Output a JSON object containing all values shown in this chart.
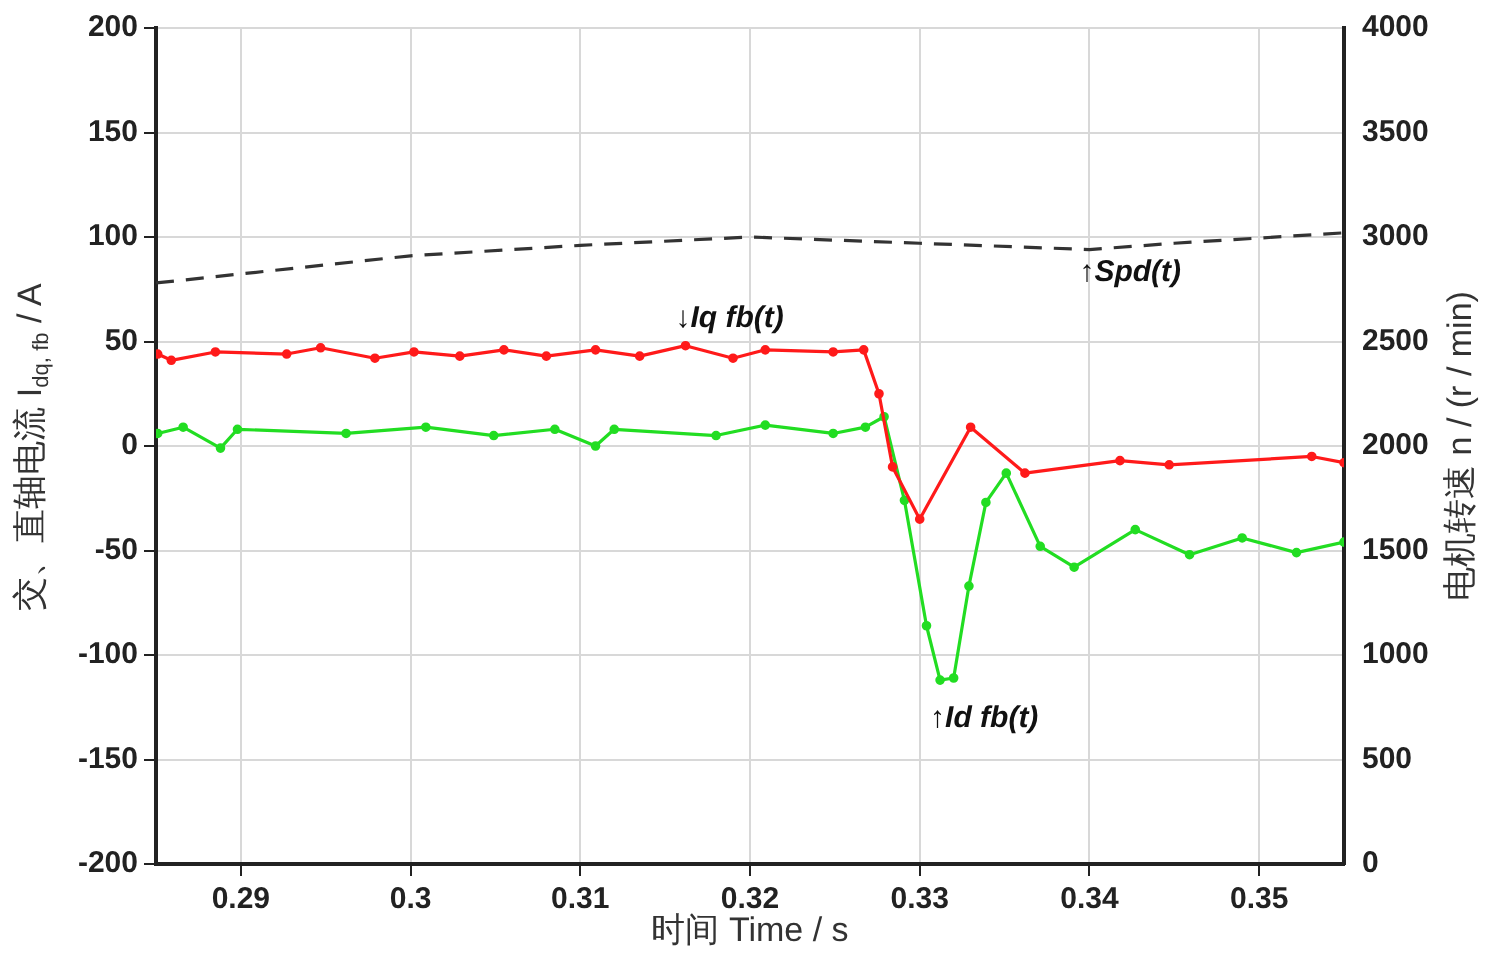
{
  "chart_data": {
    "type": "line",
    "xlabel": "时间 Time / s",
    "ylabel": "交、直轴电流 I$_{dq, fb}$ / A",
    "y2label": "电机转速 n / (r / min)",
    "xlim": [
      0.285,
      0.355
    ],
    "xticks": [
      0.29,
      0.3,
      0.31,
      0.32,
      0.33,
      0.34,
      0.35
    ],
    "ylim": [
      -200,
      200
    ],
    "yticks": [
      -200,
      -150,
      -100,
      -50,
      0,
      50,
      100,
      150,
      200
    ],
    "y2lim": [
      0,
      4000
    ],
    "y2ticks": [
      0,
      500,
      1000,
      1500,
      2000,
      2500,
      3000,
      3500,
      4000
    ],
    "grid": true,
    "legend": false,
    "series": [
      {
        "color": "#ff1a1a",
        "marker": "circle",
        "line_style": "solid",
        "x": [
          0.2851,
          0.2859,
          0.2885,
          0.2927,
          0.2947,
          0.2979,
          0.3002,
          0.3029,
          0.3055,
          0.308,
          0.3109,
          0.3135,
          0.3162,
          0.319,
          0.3209,
          0.3249,
          0.3267,
          0.3276,
          0.3284,
          0.33,
          0.333,
          0.3362,
          0.3418,
          0.3447,
          0.3531,
          0.355
        ],
        "values": [
          44,
          41,
          45,
          44,
          47,
          42,
          45,
          43,
          46,
          43,
          46,
          43,
          48,
          42,
          46,
          45,
          46,
          25,
          -10,
          -35,
          9,
          -13,
          -7,
          -9,
          -5,
          -8
        ]
      },
      {
        "color": "#22dd22",
        "marker": "circle",
        "line_style": "solid",
        "x": [
          0.2851,
          0.2866,
          0.2888,
          0.2898,
          0.2962,
          0.3009,
          0.3049,
          0.3085,
          0.3109,
          0.312,
          0.318,
          0.3209,
          0.3249,
          0.3268,
          0.3279,
          0.3291,
          0.3304,
          0.3312,
          0.332,
          0.3329,
          0.3339,
          0.3351,
          0.3371,
          0.3391,
          0.3427,
          0.3459,
          0.349,
          0.3522,
          0.355
        ],
        "values": [
          6,
          9,
          -1,
          8,
          6,
          9,
          5,
          8,
          0,
          8,
          5,
          10,
          6,
          9,
          14,
          -26,
          -86,
          -112,
          -111,
          -67,
          -27,
          -13,
          -48,
          -58,
          -40,
          -52,
          -44,
          -51,
          -46
        ]
      },
      {
        "color": "#333333",
        "marker": "none",
        "line_style": "dashed",
        "axis": "y2",
        "x": [
          0.285,
          0.3,
          0.31,
          0.32,
          0.33,
          0.34,
          0.345,
          0.355
        ],
        "values": [
          2780,
          2910,
          2960,
          3000,
          2970,
          2940,
          2970,
          3020
        ]
      }
    ],
    "annotations": [
      {
        "text": "↓Iq fb(t)",
        "x": 0.3162,
        "y": 48
      },
      {
        "text": "↑Id fb(t)",
        "x": 0.3312,
        "y": -112
      },
      {
        "text": "↑Spd(t)",
        "x": 0.34,
        "y": 94
      }
    ]
  }
}
